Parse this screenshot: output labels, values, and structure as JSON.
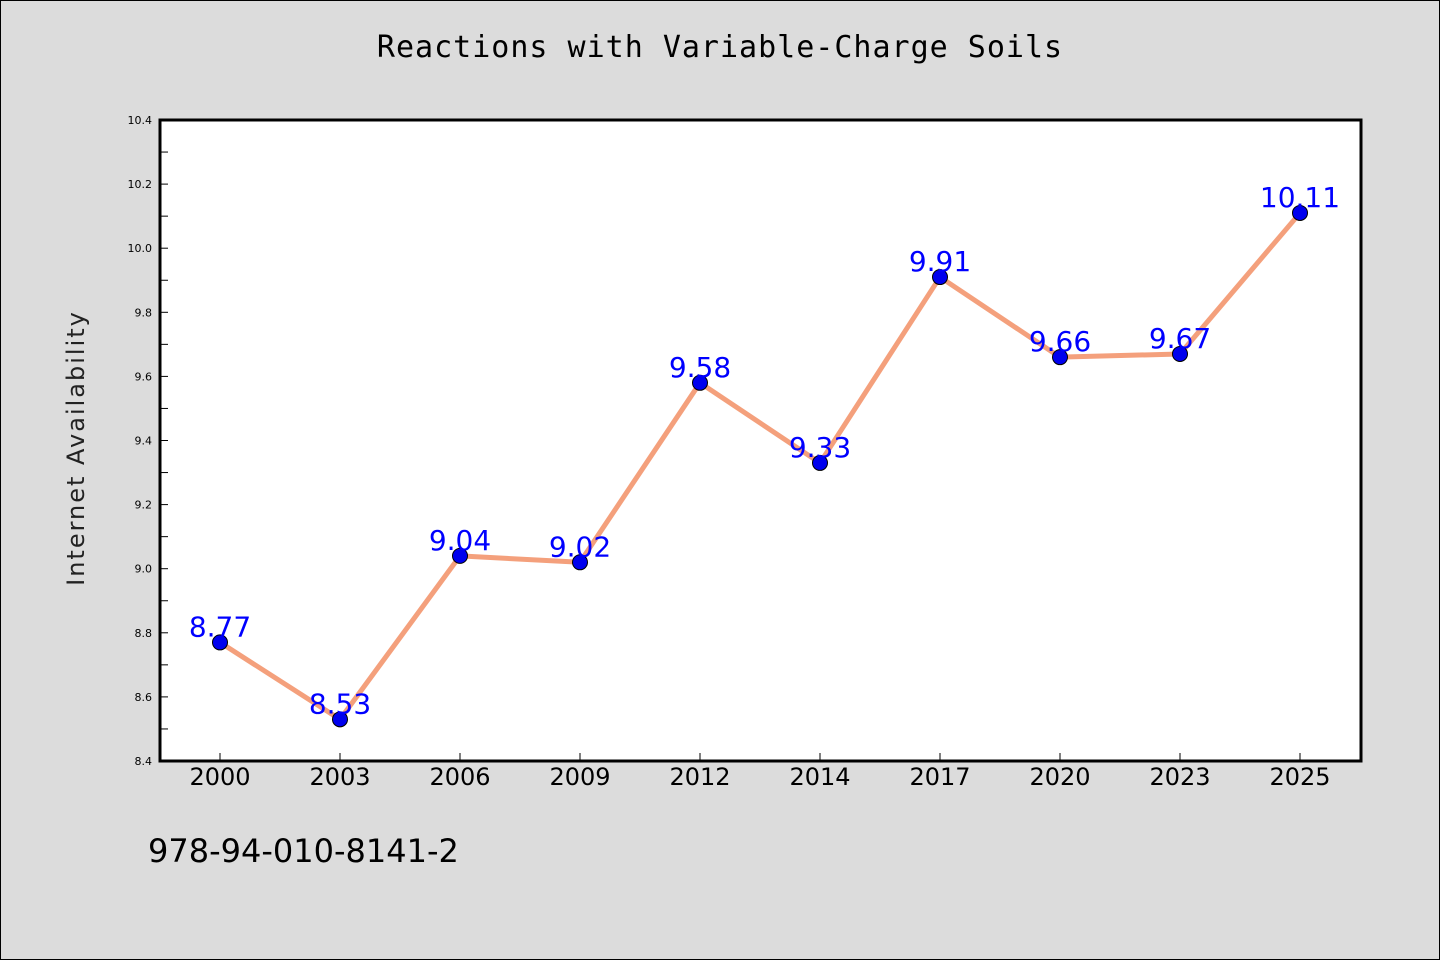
{
  "chart_data": {
    "type": "line",
    "title": "Reactions with Variable-Charge Soils",
    "xlabel": "",
    "ylabel": "Internet Availability",
    "categories": [
      "2000",
      "2003",
      "2006",
      "2009",
      "2012",
      "2014",
      "2017",
      "2020",
      "2023",
      "2025"
    ],
    "series": [
      {
        "values": [
          8.77,
          8.53,
          9.04,
          9.02,
          9.58,
          9.33,
          9.91,
          9.66,
          9.67,
          10.11
        ],
        "data_labels": [
          "8.77",
          "8.53",
          "9.04",
          "9.02",
          "9.58",
          "9.33",
          "9.91",
          "9.66",
          "9.67",
          "10.11"
        ],
        "line_color": "#f4a07c",
        "marker_color": "#0000ee",
        "label_color": "#0000ff"
      }
    ],
    "ylim": [
      8.4,
      10.4
    ],
    "yticks": [
      "8.4",
      "8.6",
      "8.8",
      "9.0",
      "9.2",
      "9.4",
      "9.6",
      "9.8",
      "10.0",
      "10.2",
      "10.4"
    ],
    "grid": false,
    "legend": "none"
  },
  "footer": {
    "text": "978-94-010-8141-2"
  },
  "colors": {
    "background": "#dcdcdc",
    "plot_background": "#ffffff"
  }
}
